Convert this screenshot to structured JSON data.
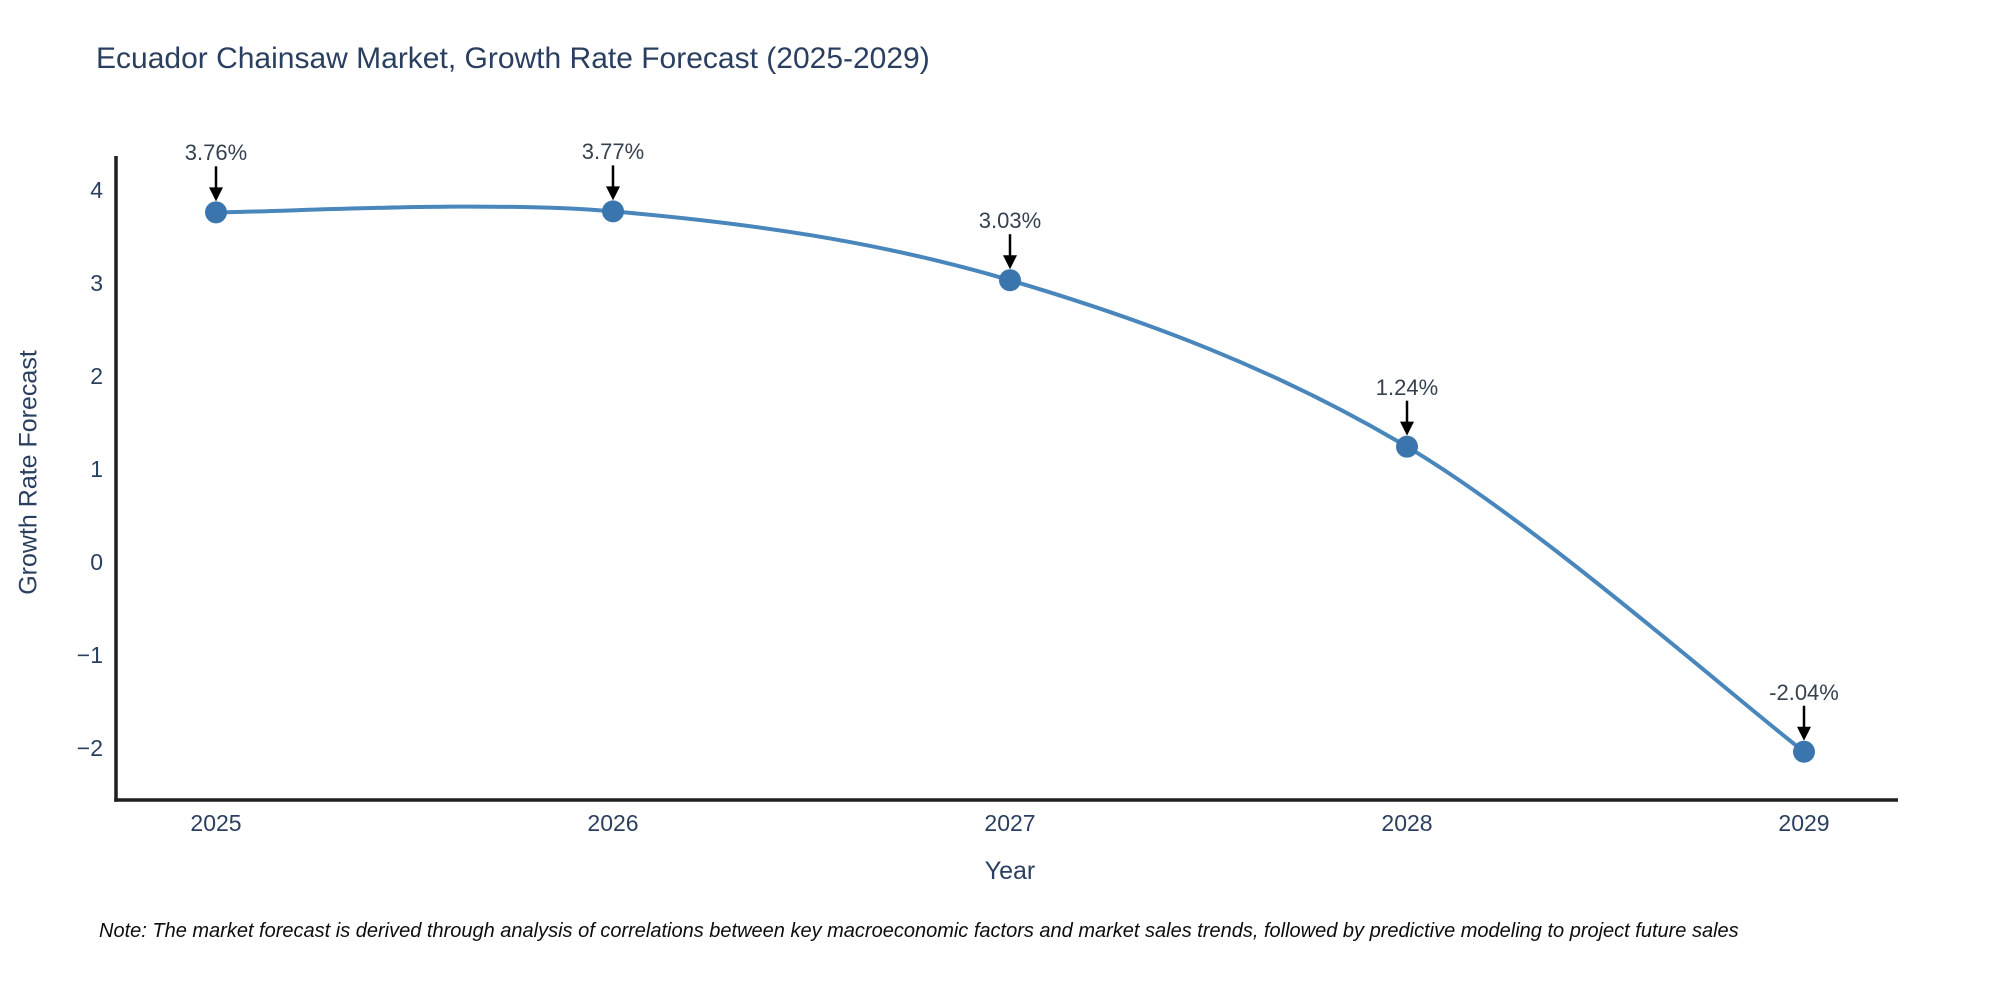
{
  "title": "Ecuador Chainsaw Market, Growth Rate Forecast (2025-2029)",
  "note": "Note: The market forecast is derived through analysis of correlations between key macroeconomic factors and market sales trends, followed by predictive modeling to project future sales",
  "chart_data": {
    "type": "line",
    "title": "Ecuador Chainsaw Market, Growth Rate Forecast (2025-2029)",
    "x": [
      2025,
      2026,
      2027,
      2028,
      2029
    ],
    "y": [
      3.76,
      3.77,
      3.03,
      1.24,
      -2.04
    ],
    "point_labels": [
      "3.76%",
      "3.77%",
      "3.03%",
      "1.24%",
      "-2.04%"
    ],
    "xlabel": "Year",
    "ylabel": "Growth Rate Forecast",
    "xticks": [
      "2025",
      "2026",
      "2027",
      "2028",
      "2029"
    ],
    "yticks": [
      4,
      3,
      2,
      1,
      0,
      -1,
      -2
    ],
    "ylim": [
      -2.55,
      4.35
    ],
    "grid": false,
    "legend": false,
    "curve": "spline",
    "colors": {
      "line": "#4886bb",
      "marker": "#3a76ad",
      "axis": "#1f1f1f",
      "text": "#2a3f5f",
      "annotation_arrow": "#000000"
    }
  }
}
